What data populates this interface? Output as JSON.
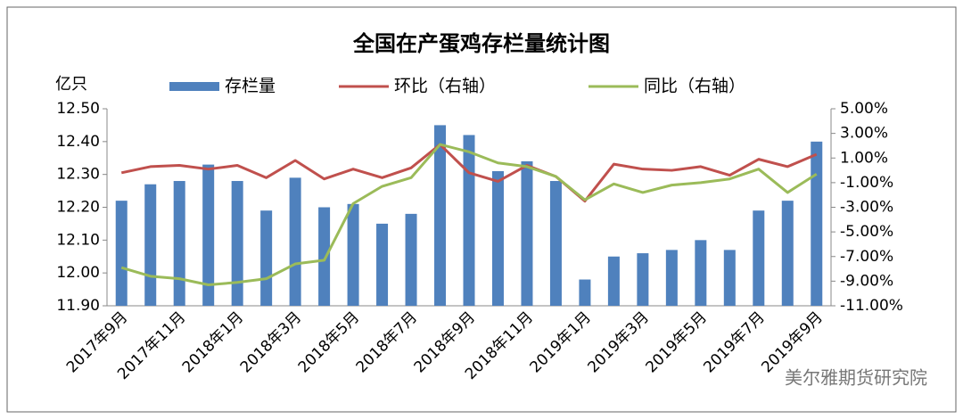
{
  "chart_data": {
    "type": "bar_line",
    "title": "全国在产蛋鸡存栏量统计图",
    "y_unit": "亿只",
    "source": "美尔雅期货研究院",
    "categories": [
      "2017年9月",
      null,
      "2017年11月",
      null,
      "2018年1月",
      null,
      "2018年3月",
      null,
      "2018年5月",
      null,
      "2018年7月",
      null,
      "2018年9月",
      null,
      "2018年11月",
      null,
      "2019年1月",
      null,
      "2019年3月",
      null,
      "2019年5月",
      null,
      "2019年7月",
      null,
      "2019年9月"
    ],
    "series": [
      {
        "name": "存栏量",
        "type": "bar",
        "color": "#4f81bd",
        "axis": "y",
        "values": [
          12.22,
          12.27,
          12.28,
          12.33,
          12.28,
          12.19,
          12.29,
          12.2,
          12.21,
          12.15,
          12.18,
          12.45,
          12.42,
          12.31,
          12.34,
          12.28,
          11.98,
          12.05,
          12.06,
          12.07,
          12.1,
          12.07,
          12.19,
          12.22,
          12.4
        ]
      },
      {
        "name": "环比（右轴）",
        "type": "line",
        "color": "#c0504d",
        "axis": "y2",
        "values": [
          -0.2,
          0.3,
          0.4,
          0.1,
          0.4,
          -0.6,
          0.8,
          -0.7,
          0.1,
          -0.6,
          0.2,
          2.1,
          -0.2,
          -0.9,
          0.4,
          -0.5,
          -2.5,
          0.5,
          0.1,
          0,
          0.3,
          -0.4,
          0.9,
          0.3,
          1.3
        ]
      },
      {
        "name": "同比（右轴）",
        "type": "line",
        "color": "#9bbb59",
        "axis": "y2",
        "values": [
          -7.9,
          -8.6,
          -8.8,
          -9.3,
          -9.1,
          -8.8,
          -7.6,
          -7.3,
          -2.7,
          -1.3,
          -0.6,
          2.1,
          1.5,
          0.6,
          0.3,
          -0.5,
          -2.4,
          -1.1,
          -1.8,
          -1.2,
          -1.0,
          -0.7,
          0.1,
          -1.8,
          -0.3
        ]
      }
    ],
    "ylim": [
      11.9,
      12.5
    ],
    "yticks": [
      {
        "value": 11.9,
        "label": "11.90"
      },
      {
        "value": 12,
        "label": "12.00"
      },
      {
        "value": 12.1,
        "label": "12.10"
      },
      {
        "value": 12.2,
        "label": "12.20"
      },
      {
        "value": 12.3,
        "label": "12.30"
      },
      {
        "value": 12.4,
        "label": "12.40"
      },
      {
        "value": 12.5,
        "label": "12.50"
      }
    ],
    "y2lim": [
      -11,
      5
    ],
    "y2ticks": [
      {
        "value": -11,
        "label": "-11.00%"
      },
      {
        "value": -9,
        "label": "-9.00%"
      },
      {
        "value": -7,
        "label": "-7.00%"
      },
      {
        "value": -5,
        "label": "-5.00%"
      },
      {
        "value": -3,
        "label": "-3.00%"
      },
      {
        "value": -1,
        "label": "-1.00%"
      },
      {
        "value": 1,
        "label": "1.00%"
      },
      {
        "value": 3,
        "label": "3.00%"
      },
      {
        "value": 5,
        "label": "5.00%"
      }
    ],
    "legend": "top",
    "grid": false
  }
}
